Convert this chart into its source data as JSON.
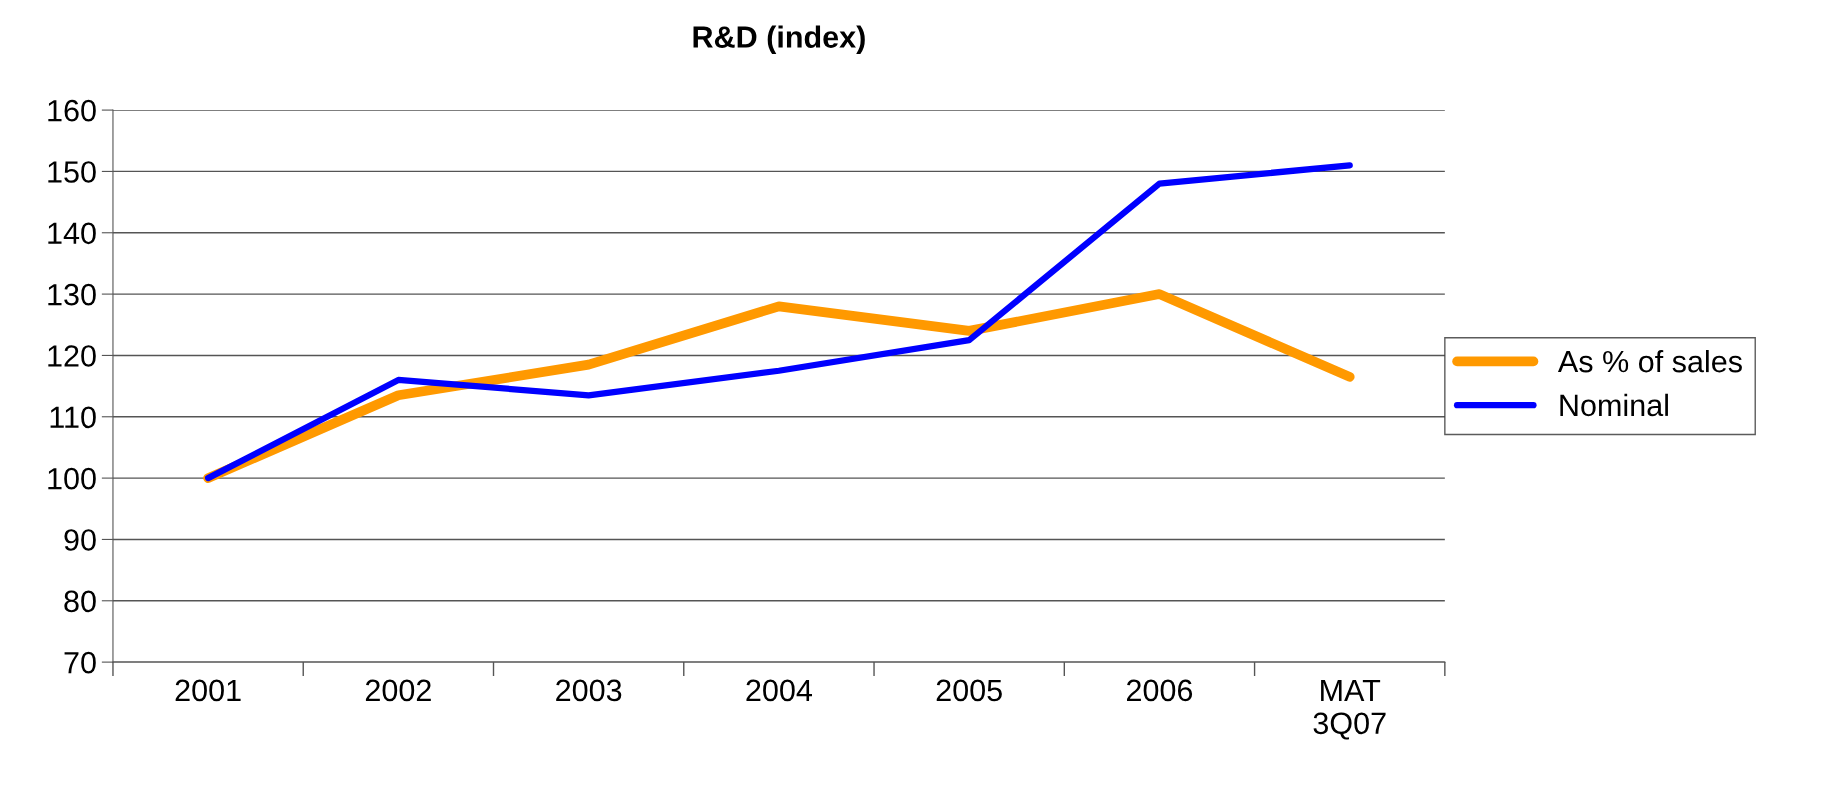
{
  "chart_data": {
    "type": "line",
    "title": "R&D (index)",
    "categories": [
      "2001",
      "2002",
      "2003",
      "2004",
      "2005",
      "2006",
      "MAT\n3Q07"
    ],
    "series": [
      {
        "name": "As % of sales",
        "color": "#ff9900",
        "values": [
          100,
          113.5,
          118.5,
          128,
          124,
          130,
          116.5
        ]
      },
      {
        "name": "Nominal",
        "color": "#0000ff",
        "values": [
          100,
          116,
          113.5,
          117.5,
          122.5,
          148,
          151
        ]
      }
    ],
    "ylim": [
      70,
      160
    ],
    "yticks": [
      70,
      80,
      90,
      100,
      110,
      120,
      130,
      140,
      150,
      160
    ],
    "grid": "y",
    "legend": "right",
    "marker": "none",
    "line_style": "solid"
  }
}
